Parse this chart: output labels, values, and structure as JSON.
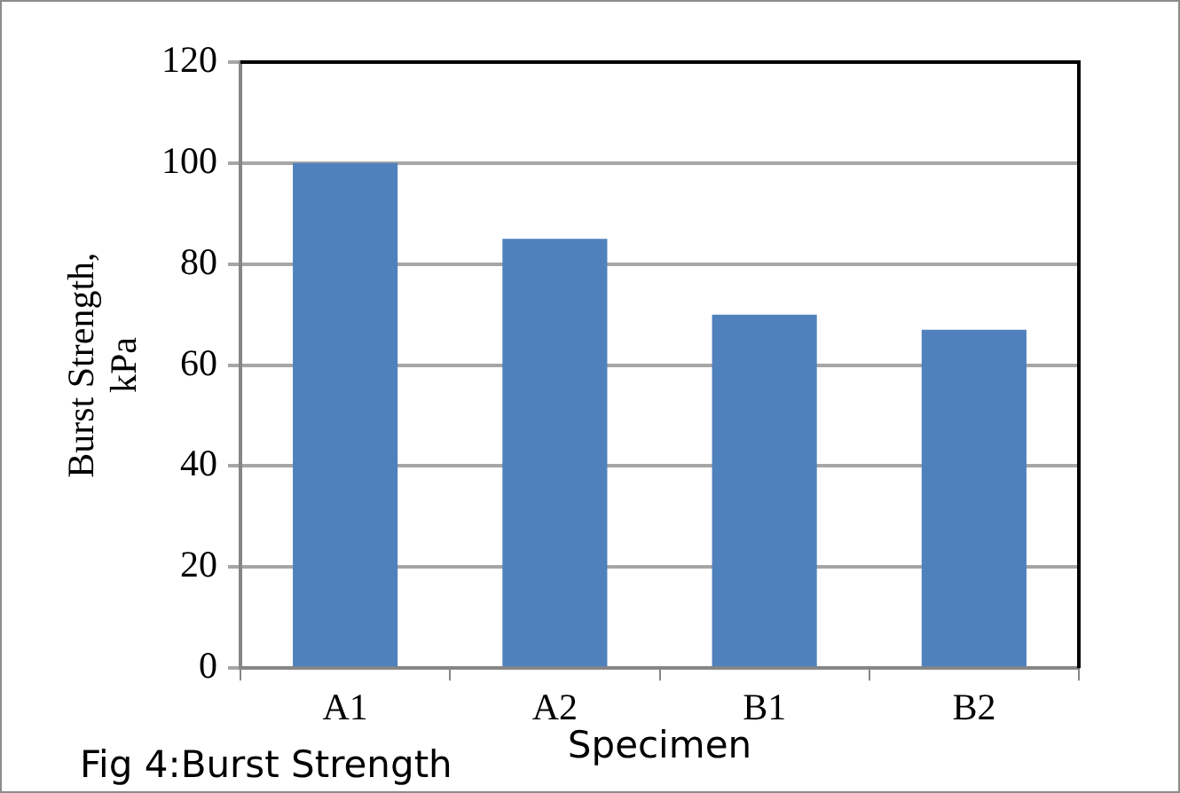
{
  "chart_data": {
    "type": "bar",
    "xlabel": "Specimen",
    "ylabel": "Burst Strength, kPa",
    "annotations": [
      "Fig 4:Burst Strength"
    ],
    "categories": [
      "A1",
      "A2",
      "B1",
      "B2"
    ],
    "values": [
      100,
      85,
      70,
      67
    ],
    "color": "#4f81bd",
    "ylim": [
      0,
      120
    ],
    "yticks": [
      0,
      20,
      40,
      60,
      80,
      100,
      120
    ],
    "grid": "y",
    "legend": false
  }
}
